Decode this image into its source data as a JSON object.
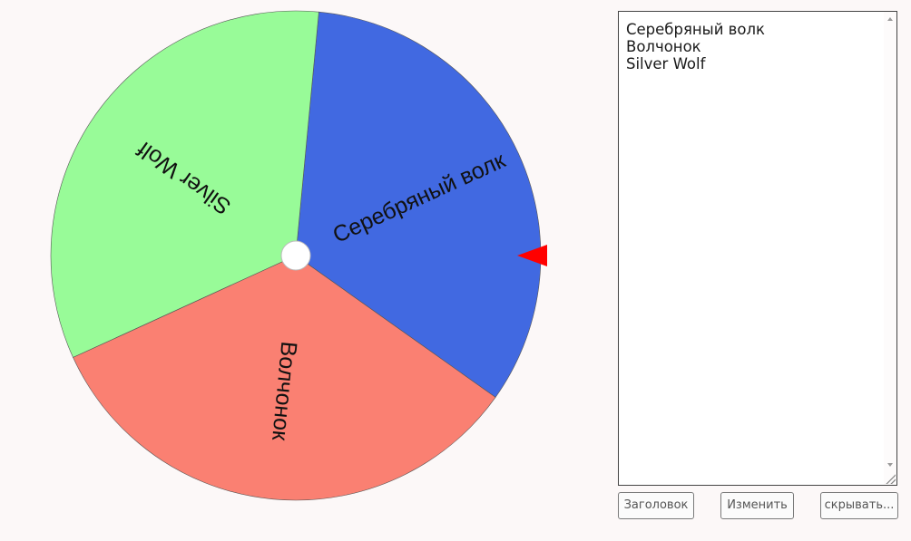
{
  "wheel": {
    "segments": [
      {
        "label": "Серебряный волк",
        "color": "#4169e1"
      },
      {
        "label": "Волчонок",
        "color": "#fa8072"
      },
      {
        "label": "Silver Wolf",
        "color": "#98fb98"
      }
    ],
    "pointer_color": "#ff0000",
    "hub_color": "#ffffff"
  },
  "editor": {
    "lines": [
      "Серебряный волк",
      "Волчонок",
      "Silver Wolf"
    ]
  },
  "buttons": {
    "title_label": "Заголовок",
    "edit_label": "Изменить",
    "hide_label": "скрывать..."
  }
}
